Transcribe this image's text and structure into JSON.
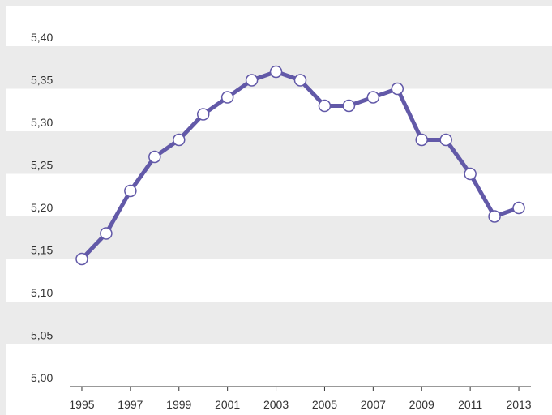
{
  "chart_data": {
    "type": "line",
    "x": [
      1995,
      1996,
      1997,
      1998,
      1999,
      2000,
      2001,
      2002,
      2003,
      2004,
      2005,
      2006,
      2007,
      2008,
      2009,
      2010,
      2011,
      2012,
      2013
    ],
    "series": [
      {
        "color": "#6259a8",
        "values": [
          5.15,
          5.18,
          5.23,
          5.27,
          5.29,
          5.32,
          5.34,
          5.36,
          5.37,
          5.36,
          5.33,
          5.33,
          5.34,
          5.35,
          5.29,
          5.29,
          5.25,
          5.2,
          5.21
        ]
      }
    ],
    "xlim": [
      1994.5,
      2013.5
    ],
    "xticks": [
      1995,
      1997,
      1999,
      2001,
      2003,
      2005,
      2007,
      2009,
      2011,
      2013
    ],
    "ylim": [
      5.0,
      5.4
    ],
    "yticks": [
      {
        "value": 5.0,
        "label": "5,00"
      },
      {
        "value": 5.05,
        "label": "5,05"
      },
      {
        "value": 5.1,
        "label": "5,10"
      },
      {
        "value": 5.15,
        "label": "5,15"
      },
      {
        "value": 5.2,
        "label": "5,20"
      },
      {
        "value": 5.25,
        "label": "5,25"
      },
      {
        "value": 5.3,
        "label": "5,30"
      },
      {
        "value": 5.35,
        "label": "5,35"
      },
      {
        "value": 5.4,
        "label": "5,40"
      }
    ],
    "grid": "bands"
  }
}
